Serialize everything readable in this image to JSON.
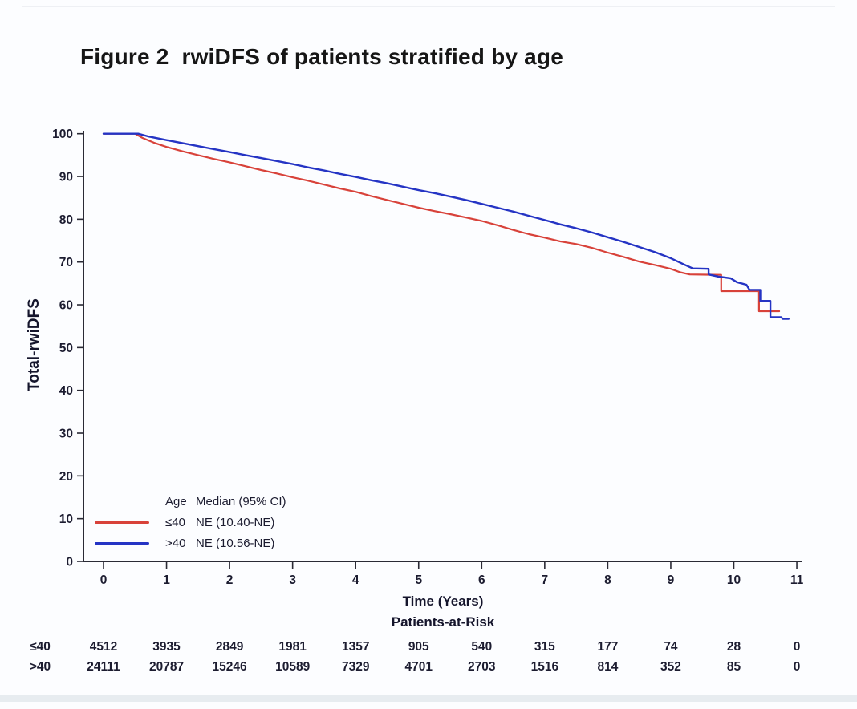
{
  "page": {
    "background": "#fcfdff"
  },
  "chart_data": {
    "type": "line",
    "subtype": "kaplan-meier-step-curves",
    "title": "Figure 2  rwiDFS of patients stratified by age",
    "xlabel": "Time (Years)",
    "ylabel": "Total-rwiDFS",
    "xlim": [
      0,
      11
    ],
    "ylim": [
      0,
      100
    ],
    "x_ticks": [
      0,
      1,
      2,
      3,
      4,
      5,
      6,
      7,
      8,
      9,
      10,
      11
    ],
    "y_ticks": [
      0,
      10,
      20,
      30,
      40,
      50,
      60,
      70,
      80,
      90,
      100
    ],
    "grid": false,
    "axis_color": "#2a2a35",
    "tick_label_color": "#1c1c30",
    "legend": {
      "position": "lower-left-inside",
      "header": {
        "age": "Age",
        "median": "Median (95% CI)"
      },
      "entries": [
        {
          "label": "≤40",
          "median": "NE (10.40-NE)",
          "color": "#d8423a"
        },
        {
          "label": ">40",
          "median": "NE (10.56-NE)",
          "color": "#2534c4"
        }
      ]
    },
    "series": [
      {
        "name": "≤40",
        "color": "#d8423a",
        "stroke_width": 2.2,
        "points": [
          [
            0,
            100
          ],
          [
            0.5,
            100
          ],
          [
            0.62,
            99
          ],
          [
            0.8,
            97.9
          ],
          [
            1,
            96.9
          ],
          [
            1.25,
            95.9
          ],
          [
            1.5,
            95
          ],
          [
            1.75,
            94.1
          ],
          [
            2,
            93.3
          ],
          [
            2.25,
            92.4
          ],
          [
            2.5,
            91.5
          ],
          [
            2.75,
            90.7
          ],
          [
            3,
            89.8
          ],
          [
            3.25,
            89
          ],
          [
            3.5,
            88.1
          ],
          [
            3.75,
            87.2
          ],
          [
            4,
            86.4
          ],
          [
            4.25,
            85.4
          ],
          [
            4.5,
            84.5
          ],
          [
            4.75,
            83.6
          ],
          [
            5,
            82.7
          ],
          [
            5.25,
            81.9
          ],
          [
            5.5,
            81.2
          ],
          [
            5.75,
            80.4
          ],
          [
            6,
            79.6
          ],
          [
            6.25,
            78.6
          ],
          [
            6.5,
            77.5
          ],
          [
            6.75,
            76.5
          ],
          [
            7,
            75.7
          ],
          [
            7.25,
            74.8
          ],
          [
            7.5,
            74.2
          ],
          [
            7.75,
            73.3
          ],
          [
            8,
            72.2
          ],
          [
            8.25,
            71.2
          ],
          [
            8.5,
            70.1
          ],
          [
            8.75,
            69.3
          ],
          [
            9,
            68.4
          ],
          [
            9.15,
            67.6
          ],
          [
            9.3,
            67.1
          ],
          [
            9.8,
            67
          ],
          [
            9.8,
            63.2
          ],
          [
            10.4,
            63.2
          ],
          [
            10.4,
            58.5
          ],
          [
            10.72,
            58.5
          ]
        ]
      },
      {
        "name": ">40",
        "color": "#2534c4",
        "stroke_width": 2.4,
        "points": [
          [
            0,
            100
          ],
          [
            0.55,
            100
          ],
          [
            0.7,
            99.4
          ],
          [
            1,
            98.5
          ],
          [
            1.25,
            97.8
          ],
          [
            1.5,
            97.1
          ],
          [
            1.75,
            96.4
          ],
          [
            2,
            95.7
          ],
          [
            2.25,
            95
          ],
          [
            2.5,
            94.3
          ],
          [
            2.75,
            93.6
          ],
          [
            3,
            92.9
          ],
          [
            3.25,
            92.1
          ],
          [
            3.5,
            91.4
          ],
          [
            3.75,
            90.6
          ],
          [
            4,
            89.9
          ],
          [
            4.25,
            89.1
          ],
          [
            4.5,
            88.4
          ],
          [
            4.75,
            87.6
          ],
          [
            5,
            86.8
          ],
          [
            5.25,
            86.1
          ],
          [
            5.5,
            85.3
          ],
          [
            5.75,
            84.5
          ],
          [
            6,
            83.6
          ],
          [
            6.25,
            82.7
          ],
          [
            6.5,
            81.8
          ],
          [
            6.75,
            80.8
          ],
          [
            7,
            79.8
          ],
          [
            7.25,
            78.8
          ],
          [
            7.5,
            77.9
          ],
          [
            7.75,
            76.9
          ],
          [
            8,
            75.8
          ],
          [
            8.25,
            74.7
          ],
          [
            8.5,
            73.5
          ],
          [
            8.75,
            72.3
          ],
          [
            9,
            70.9
          ],
          [
            9.2,
            69.5
          ],
          [
            9.35,
            68.5
          ],
          [
            9.6,
            68.4
          ],
          [
            9.6,
            67.1
          ],
          [
            9.75,
            66.6
          ],
          [
            9.95,
            66.2
          ],
          [
            10.05,
            65.3
          ],
          [
            10.2,
            64.7
          ],
          [
            10.25,
            63.5
          ],
          [
            10.42,
            63.5
          ],
          [
            10.42,
            60.9
          ],
          [
            10.58,
            60.9
          ],
          [
            10.58,
            57.1
          ],
          [
            10.75,
            57.1
          ],
          [
            10.78,
            56.7
          ],
          [
            10.87,
            56.7
          ]
        ]
      }
    ],
    "at_risk": {
      "title": "Patients-at-Risk",
      "time_points": [
        0,
        1,
        2,
        3,
        4,
        5,
        6,
        7,
        8,
        9,
        10,
        11
      ],
      "rows": [
        {
          "label": "≤40",
          "values": [
            4512,
            3935,
            2849,
            1981,
            1357,
            905,
            540,
            315,
            177,
            74,
            28,
            0
          ]
        },
        {
          "label": ">40",
          "values": [
            24111,
            20787,
            15246,
            10589,
            7329,
            4701,
            2703,
            1516,
            814,
            352,
            85,
            0
          ]
        }
      ]
    }
  }
}
